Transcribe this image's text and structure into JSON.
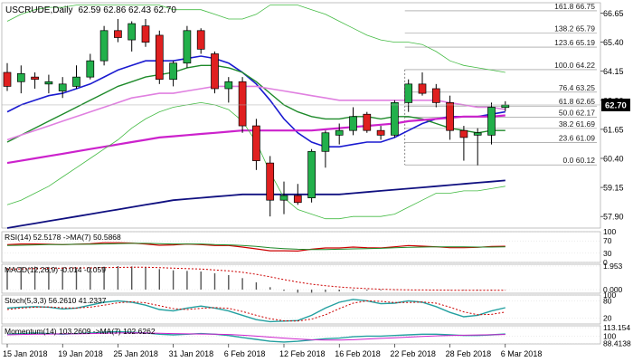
{
  "chart_data": {
    "type": "candlestick",
    "symbol_title": "USCRUDE,Daily",
    "ohlc_header": "62.59 62.86 62.43 62.70",
    "last_price_label": "62.70",
    "colors": {
      "up": "#22b04b",
      "down": "#e02020",
      "outline": "#000000",
      "last_price_bg": "#000000"
    },
    "main_ylim": [
      57.4,
      67.1
    ],
    "y_ticks": [
      57.9,
      59.15,
      60.4,
      61.65,
      62.9,
      64.15,
      65.4,
      66.65
    ],
    "y_tick_labels": [
      "57.90",
      "59.15",
      "60.40",
      "61.65",
      "62.90",
      "64.15",
      "65.40",
      "66.65"
    ],
    "x_tick_labels": [
      {
        "i": 0,
        "label": "15 Jan 2018"
      },
      {
        "i": 4,
        "label": "19 Jan 2018"
      },
      {
        "i": 8,
        "label": "25 Jan 2018"
      },
      {
        "i": 12,
        "label": "31 Jan 2018"
      },
      {
        "i": 16,
        "label": "6 Feb 2018"
      },
      {
        "i": 20,
        "label": "12 Feb 2018"
      },
      {
        "i": 24,
        "label": "16 Feb 2018"
      },
      {
        "i": 28,
        "label": "22 Feb 2018"
      },
      {
        "i": 32,
        "label": "28 Feb 2018"
      },
      {
        "i": 36,
        "label": "6 Mar 2018"
      }
    ],
    "candles": [
      {
        "o": 64.1,
        "h": 64.5,
        "l": 63.3,
        "c": 63.5
      },
      {
        "o": 63.7,
        "h": 64.4,
        "l": 63.2,
        "c": 64.05
      },
      {
        "o": 63.9,
        "h": 64.1,
        "l": 63.4,
        "c": 63.8
      },
      {
        "o": 63.6,
        "h": 64.0,
        "l": 63.2,
        "c": 63.7
      },
      {
        "o": 63.3,
        "h": 63.9,
        "l": 63.0,
        "c": 63.6
      },
      {
        "o": 63.5,
        "h": 64.4,
        "l": 63.4,
        "c": 63.9
      },
      {
        "o": 63.9,
        "h": 64.9,
        "l": 63.8,
        "c": 64.6
      },
      {
        "o": 64.6,
        "h": 66.1,
        "l": 64.4,
        "c": 65.9
      },
      {
        "o": 65.9,
        "h": 66.4,
        "l": 65.4,
        "c": 65.6
      },
      {
        "o": 65.5,
        "h": 66.3,
        "l": 65.0,
        "c": 66.2
      },
      {
        "o": 66.1,
        "h": 66.4,
        "l": 65.2,
        "c": 65.4
      },
      {
        "o": 65.7,
        "h": 65.9,
        "l": 63.6,
        "c": 63.8
      },
      {
        "o": 63.8,
        "h": 64.6,
        "l": 63.5,
        "c": 64.5
      },
      {
        "o": 64.5,
        "h": 66.1,
        "l": 64.3,
        "c": 65.9
      },
      {
        "o": 65.9,
        "h": 66.0,
        "l": 64.9,
        "c": 65.1
      },
      {
        "o": 64.9,
        "h": 65.0,
        "l": 63.2,
        "c": 63.4
      },
      {
        "o": 63.4,
        "h": 63.9,
        "l": 62.8,
        "c": 63.7
      },
      {
        "o": 63.7,
        "h": 63.9,
        "l": 61.5,
        "c": 61.8
      },
      {
        "o": 61.8,
        "h": 62.1,
        "l": 59.9,
        "c": 60.3
      },
      {
        "o": 60.2,
        "h": 60.5,
        "l": 57.9,
        "c": 58.6
      },
      {
        "o": 58.6,
        "h": 59.4,
        "l": 58.0,
        "c": 58.8
      },
      {
        "o": 58.8,
        "h": 59.3,
        "l": 58.4,
        "c": 58.5
      },
      {
        "o": 58.7,
        "h": 60.8,
        "l": 58.5,
        "c": 60.7
      },
      {
        "o": 60.7,
        "h": 61.6,
        "l": 60.0,
        "c": 61.5
      },
      {
        "o": 61.4,
        "h": 61.9,
        "l": 61.0,
        "c": 61.6
      },
      {
        "o": 61.6,
        "h": 62.6,
        "l": 61.4,
        "c": 62.2
      },
      {
        "o": 62.3,
        "h": 62.4,
        "l": 61.5,
        "c": 61.6
      },
      {
        "o": 61.6,
        "h": 61.8,
        "l": 61.2,
        "c": 61.4
      },
      {
        "o": 61.4,
        "h": 62.9,
        "l": 61.3,
        "c": 62.8
      },
      {
        "o": 62.8,
        "h": 63.8,
        "l": 62.4,
        "c": 63.6
      },
      {
        "o": 63.6,
        "h": 64.1,
        "l": 63.1,
        "c": 63.2
      },
      {
        "o": 63.4,
        "h": 63.6,
        "l": 62.6,
        "c": 62.8
      },
      {
        "o": 62.8,
        "h": 63.1,
        "l": 61.2,
        "c": 61.6
      },
      {
        "o": 61.6,
        "h": 61.8,
        "l": 60.3,
        "c": 61.3
      },
      {
        "o": 61.4,
        "h": 61.7,
        "l": 60.1,
        "c": 61.5
      },
      {
        "o": 61.4,
        "h": 62.8,
        "l": 61.0,
        "c": 62.6
      },
      {
        "o": 62.59,
        "h": 62.86,
        "l": 62.43,
        "c": 62.7
      }
    ],
    "indicator_lines": [
      {
        "color": "#1a1ad0",
        "width": 1.6,
        "values": [
          62.4,
          62.7,
          62.9,
          63.1,
          63.2,
          63.4,
          63.6,
          63.9,
          64.2,
          64.4,
          64.6,
          64.6,
          64.6,
          64.7,
          64.8,
          64.7,
          64.5,
          64.1,
          63.6,
          62.9,
          62.1,
          61.5,
          61.1,
          60.9,
          60.9,
          61.0,
          61.1,
          61.1,
          61.3,
          61.6,
          61.9,
          62.1,
          62.2,
          62.2,
          62.2,
          62.3,
          62.4
        ]
      },
      {
        "color": "#1e8a2a",
        "width": 1.4,
        "values": [
          61.1,
          61.4,
          61.7,
          62.0,
          62.3,
          62.6,
          62.9,
          63.2,
          63.5,
          63.7,
          63.9,
          64.0,
          64.1,
          64.3,
          64.4,
          64.4,
          64.3,
          64.1,
          63.7,
          63.2,
          62.7,
          62.4,
          62.2,
          62.1,
          62.1,
          62.2,
          62.2,
          62.1,
          62.2,
          62.2,
          62.1,
          61.9,
          61.7,
          61.6,
          61.5,
          61.6,
          61.6
        ]
      },
      {
        "color": "#e080e0",
        "width": 1.6,
        "values": [
          61.2,
          61.4,
          61.6,
          61.8,
          62.0,
          62.2,
          62.4,
          62.6,
          62.8,
          63.0,
          63.1,
          63.2,
          63.2,
          63.3,
          63.4,
          63.5,
          63.5,
          63.5,
          63.5,
          63.4,
          63.3,
          63.2,
          63.1,
          63.0,
          62.9,
          62.9,
          62.9,
          62.9,
          62.9,
          62.9,
          62.9,
          62.9,
          62.8,
          62.7,
          62.6,
          62.6,
          62.5
        ]
      },
      {
        "color": "#cc22cc",
        "width": 2.2,
        "values": [
          60.2,
          60.3,
          60.4,
          60.5,
          60.6,
          60.7,
          60.8,
          60.9,
          61.0,
          61.1,
          61.2,
          61.3,
          61.35,
          61.4,
          61.45,
          61.5,
          61.55,
          61.6,
          61.6,
          61.6,
          61.6,
          61.6,
          61.6,
          61.65,
          61.7,
          61.75,
          61.8,
          61.85,
          61.9,
          62.0,
          62.05,
          62.1,
          62.15,
          62.2,
          62.2,
          62.2,
          62.25
        ]
      },
      {
        "color": "#101080",
        "width": 1.8,
        "values": [
          57.4,
          57.5,
          57.6,
          57.7,
          57.8,
          57.9,
          58.0,
          58.1,
          58.2,
          58.3,
          58.4,
          58.5,
          58.6,
          58.65,
          58.7,
          58.75,
          58.8,
          58.85,
          58.85,
          58.85,
          58.85,
          58.85,
          58.85,
          58.85,
          58.85,
          58.9,
          58.95,
          59.0,
          59.05,
          59.1,
          59.15,
          59.2,
          59.25,
          59.3,
          59.35,
          59.4,
          59.45
        ]
      },
      {
        "color": "#44bb44",
        "width": 0.8,
        "values": [
          66.3,
          66.6,
          66.8,
          66.9,
          66.9,
          67.0,
          67.0,
          67.0,
          67.0,
          67.0,
          67.0,
          67.0,
          66.8,
          66.8,
          66.8,
          66.6,
          66.4,
          66.4,
          66.6,
          67.0,
          67.0,
          67.0,
          66.8,
          66.6,
          66.3,
          66.0,
          65.7,
          65.5,
          65.4,
          65.4,
          65.3,
          65.0,
          64.6,
          64.4,
          64.3,
          64.2,
          64.1
        ]
      },
      {
        "color": "#44bb44",
        "width": 0.8,
        "values": [
          58.4,
          58.6,
          58.9,
          59.2,
          59.6,
          60.0,
          60.4,
          60.8,
          61.2,
          61.7,
          62.1,
          62.4,
          62.6,
          62.7,
          62.8,
          62.7,
          62.5,
          62.0,
          61.1,
          59.8,
          58.7,
          58.2,
          58.0,
          57.8,
          57.8,
          57.9,
          57.9,
          57.9,
          58.0,
          58.3,
          58.6,
          58.9,
          58.9,
          59.0,
          59.0,
          59.1,
          59.2
        ]
      }
    ],
    "fib": {
      "swing_start_index": 29,
      "levels": [
        {
          "ratio": "161.8",
          "price": 66.75,
          "label": "161.8  66.75"
        },
        {
          "ratio": "138.2",
          "price": 65.79,
          "label": "138.2  65.79"
        },
        {
          "ratio": "123.6",
          "price": 65.19,
          "label": "123.6  65.19"
        },
        {
          "ratio": "100.0",
          "price": 64.22,
          "label": "100.0  64.22"
        },
        {
          "ratio": "76.4",
          "price": 63.25,
          "label": "76.4  63.25"
        },
        {
          "ratio": "61.8",
          "price": 62.65,
          "label": "61.8  62.65"
        },
        {
          "ratio": "50.0",
          "price": 62.17,
          "label": "50.0  62.17"
        },
        {
          "ratio": "38.2",
          "price": 61.69,
          "label": "38.2  61.69"
        },
        {
          "ratio": "23.6",
          "price": 61.09,
          "label": "23.6  61.09"
        },
        {
          "ratio": "0.0",
          "price": 60.12,
          "label": "0.0  60.12"
        }
      ]
    },
    "panels": [
      {
        "id": "rsi",
        "label": "RSI(14) 52.5178  ->MA(7) 50.5868",
        "ylim": [
          0,
          100
        ],
        "ticks": [
          {
            "v": 100,
            "label": "100"
          },
          {
            "v": 70,
            "label": "70"
          },
          {
            "v": 30,
            "label": "30"
          },
          {
            "v": 0,
            "label": "0"
          }
        ],
        "lines": [
          {
            "color": "#cc0000",
            "width": 1.2,
            "values": [
              58,
              60,
              60,
              59,
              58,
              59,
              61,
              64,
              64,
              63,
              60,
              56,
              57,
              60,
              58,
              55,
              55,
              50,
              44,
              38,
              38,
              37,
              43,
              47,
              47,
              50,
              48,
              47,
              51,
              55,
              53,
              51,
              48,
              48,
              49,
              52,
              52.5
            ]
          },
          {
            "color": "#1e8a2a",
            "width": 1.0,
            "values": [
              55,
              56,
              57,
              58,
              58,
              59,
              59,
              60,
              61,
              62,
              62,
              61,
              60,
              60,
              60,
              58,
              57,
              55,
              52,
              48,
              45,
              43,
              42,
              42,
              43,
              44,
              45,
              46,
              48,
              49,
              50,
              51,
              51,
              51,
              50,
              50,
              50.6
            ]
          }
        ]
      },
      {
        "id": "macd",
        "label": "MACD(12,26,9) -0.014 -0.059",
        "ylim": [
          -0.3,
          2.1
        ],
        "ticks": [
          {
            "v": 1.953,
            "label": "1.953"
          },
          {
            "v": 0,
            "label": "0.000"
          }
        ],
        "hist": {
          "color": "#555555",
          "values": [
            1.8,
            1.85,
            1.9,
            1.88,
            1.85,
            1.82,
            1.84,
            1.9,
            1.95,
            1.92,
            1.85,
            1.7,
            1.6,
            1.55,
            1.5,
            1.35,
            1.2,
            0.95,
            0.6,
            0.2,
            -0.1,
            -0.25,
            -0.25,
            -0.2,
            -0.15,
            -0.1,
            -0.08,
            -0.06,
            -0.04,
            -0.02,
            0.0,
            0.0,
            -0.02,
            -0.04,
            -0.04,
            -0.03,
            -0.014
          ]
        },
        "lines": [
          {
            "color": "#cc0000",
            "width": 1.0,
            "dash": "2,2",
            "values": [
              1.7,
              1.72,
              1.74,
              1.76,
              1.78,
              1.79,
              1.8,
              1.82,
              1.84,
              1.85,
              1.85,
              1.82,
              1.78,
              1.74,
              1.7,
              1.63,
              1.55,
              1.43,
              1.27,
              1.06,
              0.83,
              0.62,
              0.45,
              0.32,
              0.22,
              0.14,
              0.08,
              0.03,
              0.0,
              -0.02,
              -0.03,
              -0.04,
              -0.05,
              -0.05,
              -0.06,
              -0.06,
              -0.059
            ]
          }
        ]
      },
      {
        "id": "stoch",
        "label": "Stoch(5,3,3) 56.2610 41.2337",
        "ylim": [
          0,
          100
        ],
        "ticks": [
          {
            "v": 100,
            "label": "100"
          },
          {
            "v": 80,
            "label": "80"
          },
          {
            "v": 20,
            "label": "20"
          }
        ],
        "lines": [
          {
            "color": "#23a0a0",
            "width": 1.4,
            "values": [
              55,
              58,
              60,
              58,
              52,
              55,
              65,
              75,
              80,
              75,
              65,
              50,
              45,
              55,
              62,
              55,
              45,
              30,
              15,
              8,
              10,
              12,
              30,
              55,
              75,
              85,
              80,
              70,
              72,
              80,
              75,
              60,
              40,
              25,
              30,
              45,
              56.3
            ]
          },
          {
            "color": "#cc0000",
            "width": 1.0,
            "dash": "2,2",
            "values": [
              50,
              55,
              58,
              59,
              56,
              55,
              58,
              65,
              73,
              77,
              73,
              63,
              53,
              50,
              54,
              57,
              54,
              43,
              30,
              18,
              11,
              10,
              17,
              32,
              53,
              72,
              80,
              78,
              74,
              74,
              76,
              72,
              58,
              42,
              32,
              33,
              41.2
            ]
          }
        ]
      },
      {
        "id": "mom",
        "label": "Momentum(14) 103.2609  ->MA(7) 102.6262",
        "ylim": [
          88,
          116
        ],
        "ticks": [
          {
            "v": 113.154,
            "label": "113.154"
          },
          {
            "v": 100,
            "label": "100"
          },
          {
            "v": 88.4138,
            "label": "88.4138"
          }
        ],
        "lines": [
          {
            "color": "#23a0a0",
            "width": 1.4,
            "values": [
              103,
              104,
              105,
              104,
              103,
              104,
              105,
              106,
              107,
              106,
              105,
              103,
              102,
              103,
              104,
              103,
              101,
              98,
              95,
              92,
              91,
              92,
              94,
              96,
              97,
              99,
              100,
              100,
              101,
              102,
              103,
              103,
              102,
              101,
              101,
              102,
              103.3
            ]
          },
          {
            "color": "#cc22cc",
            "width": 1.0,
            "values": [
              102,
              102.5,
              103,
              103.3,
              103.5,
              103.6,
              104,
              104.5,
              105,
              105.2,
              105,
              104.5,
              104,
              103.5,
              103.3,
              103,
              102.5,
              101.5,
              100,
              98.5,
              97,
              95.5,
              94.5,
              94,
              94,
              94.5,
              95.5,
              96.5,
              97.5,
              98.5,
              99.5,
              100.5,
              101,
              101.5,
              101.8,
              102.2,
              102.6
            ]
          }
        ]
      }
    ]
  }
}
